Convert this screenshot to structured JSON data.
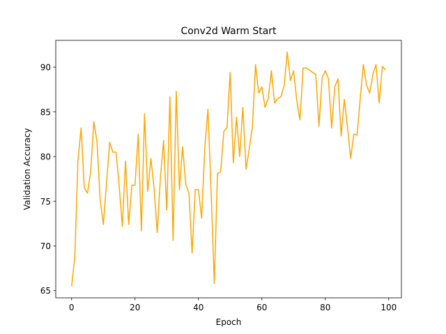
{
  "chart_data": {
    "type": "line",
    "title": "Conv2d Warm Start",
    "xlabel": "Epoch",
    "ylabel": "Validation Accuracy",
    "xlim": [
      -5,
      104
    ],
    "ylim": [
      64.2,
      93.0
    ],
    "xticks": [
      0,
      20,
      40,
      60,
      80,
      100
    ],
    "yticks": [
      65,
      70,
      75,
      80,
      85,
      90
    ],
    "grid": false,
    "line_color": "#ffa500",
    "series": [
      {
        "x": [
          0,
          1,
          2,
          3,
          4,
          5,
          6,
          7,
          8,
          9,
          10,
          11,
          12,
          13,
          14,
          15,
          16,
          17,
          18,
          19,
          20,
          21,
          22,
          23,
          24,
          25,
          26,
          27,
          28,
          29,
          30,
          31,
          32,
          33,
          34,
          35,
          36,
          37,
          38,
          39,
          40,
          41,
          42,
          43,
          44,
          45,
          46,
          47,
          48,
          49,
          50,
          51,
          52,
          53,
          54,
          55,
          56,
          57,
          58,
          59,
          60,
          61,
          62,
          63,
          64,
          65,
          66,
          67,
          68,
          69,
          70,
          71,
          72,
          73,
          74,
          75,
          76,
          77,
          78,
          79,
          80,
          81,
          82,
          83,
          84,
          85,
          86,
          87,
          88,
          89,
          90,
          91,
          92,
          93,
          94,
          95,
          96,
          97,
          98,
          99
        ],
        "y": [
          65.5,
          68.7,
          79.6,
          83.2,
          76.5,
          75.9,
          78.3,
          83.9,
          81.7,
          75.2,
          72.4,
          77.0,
          81.6,
          80.5,
          80.5,
          76.7,
          72.2,
          79.5,
          72.4,
          76.8,
          76.8,
          82.5,
          71.7,
          84.8,
          76.1,
          79.8,
          76.5,
          71.5,
          77.6,
          81.8,
          74.0,
          86.7,
          70.6,
          87.3,
          76.3,
          81.1,
          76.9,
          75.9,
          69.2,
          76.3,
          76.3,
          73.1,
          81.0,
          85.3,
          76.0,
          65.8,
          78.1,
          78.3,
          82.8,
          83.2,
          89.4,
          79.3,
          84.4,
          80.0,
          85.5,
          78.6,
          80.8,
          83.3,
          90.3,
          87.1,
          87.8,
          85.5,
          86.5,
          89.6,
          86.0,
          86.5,
          86.7,
          87.9,
          91.7,
          88.5,
          89.6,
          86.3,
          84.1,
          89.9,
          89.9,
          89.7,
          89.4,
          89.2,
          83.4,
          88.8,
          89.6,
          88.7,
          83.2,
          87.8,
          88.7,
          82.3,
          86.4,
          83.3,
          79.8,
          82.5,
          82.4,
          86.4,
          90.3,
          88.0,
          87.1,
          89.2,
          90.3,
          86.0,
          90.1,
          89.7
        ]
      }
    ]
  }
}
